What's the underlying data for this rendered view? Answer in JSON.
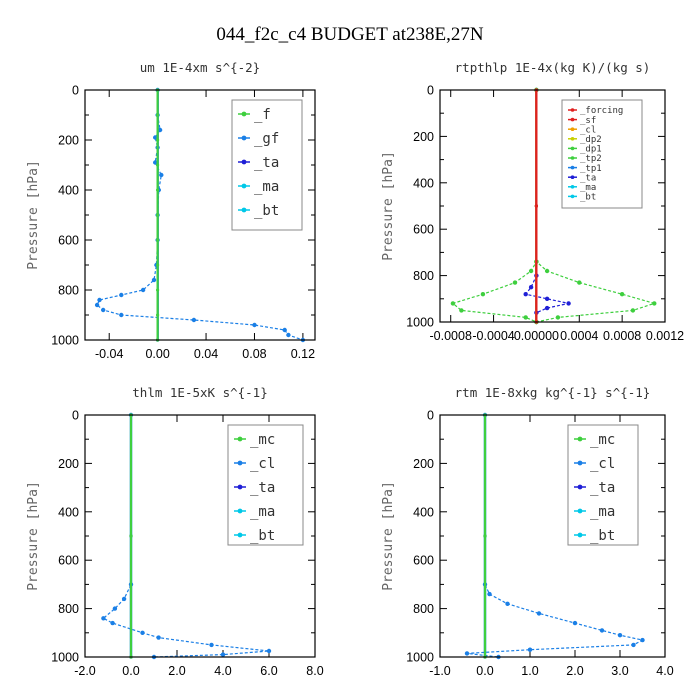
{
  "title": "044_f2c_c4  BUDGET at238E,27N",
  "colors": {
    "green": "#3ecf3e",
    "blue": "#1a7fe6",
    "navy": "#1f1fd6",
    "cyan": "#00c8e8",
    "red": "#e02020",
    "orange": "#f0a000",
    "yellow": "#c8d000"
  },
  "chart_data": [
    {
      "type": "line",
      "title": "um  1E-4xm s^{-2}",
      "ylabel": "Pressure [hPa]",
      "xlim": [
        -0.06,
        0.13
      ],
      "xticks": [
        -0.04,
        0.0,
        0.04,
        0.08,
        0.12
      ],
      "xtick_labels": [
        "-0.04",
        "0.00",
        "0.04",
        "0.08",
        "0.12"
      ],
      "ylim": [
        1000,
        0
      ],
      "yticks": [
        0,
        200,
        400,
        600,
        800,
        1000
      ],
      "legend_position": "top-right",
      "series": [
        {
          "name": "_f",
          "color": "#3ecf3e",
          "p": [
            0,
            100,
            200,
            300,
            400,
            500,
            600,
            700,
            800,
            900,
            1000
          ],
          "values": [
            0,
            0,
            0,
            0,
            0,
            0,
            0,
            0,
            0,
            0,
            0
          ]
        },
        {
          "name": "_gf",
          "color": "#1a7fe6",
          "p": [
            0,
            100,
            160,
            190,
            230,
            290,
            340,
            400,
            500,
            600,
            700,
            760,
            800,
            820,
            840,
            860,
            880,
            900,
            920,
            940,
            960,
            980,
            1000
          ],
          "values": [
            0,
            0,
            0.002,
            -0.002,
            0.0,
            -0.002,
            0.003,
            0.001,
            0.0,
            0.0,
            -0.001,
            -0.003,
            -0.012,
            -0.03,
            -0.048,
            -0.05,
            -0.045,
            -0.03,
            0.03,
            0.08,
            0.105,
            0.108,
            0.12
          ]
        },
        {
          "name": "_ta",
          "color": "#1f1fd6",
          "p": [
            0,
            500,
            1000
          ],
          "values": [
            0,
            0,
            0
          ]
        },
        {
          "name": "_ma",
          "color": "#00c8e8",
          "p": [
            0,
            500,
            1000
          ],
          "values": [
            0,
            0,
            0
          ]
        },
        {
          "name": "_bt",
          "color": "#00c8e8",
          "p": [
            0,
            500,
            1000
          ],
          "values": [
            0,
            0,
            0
          ]
        }
      ]
    },
    {
      "type": "line",
      "title": "rtpthlp  1E-4x(kg K)/(kg s)",
      "ylabel": "Pressure [hPa]",
      "xlim": [
        -0.0009,
        0.0012
      ],
      "xticks": [
        -0.0008,
        -0.0004,
        0.0,
        0.0004,
        0.0008,
        0.0012
      ],
      "xtick_labels": [
        "-0.0008",
        "-0.0004",
        "0.00000",
        "0.0004",
        "0.0008",
        "0.0012"
      ],
      "ylim": [
        1000,
        0
      ],
      "yticks": [
        0,
        200,
        400,
        600,
        800,
        1000
      ],
      "legend_position": "top-right",
      "series": [
        {
          "name": "_forcing",
          "color": "#e02020",
          "p": [
            0,
            500,
            1000
          ],
          "values": [
            0,
            0,
            0
          ]
        },
        {
          "name": "_sf",
          "color": "#e02020",
          "p": [
            0,
            500,
            1000
          ],
          "values": [
            0,
            0,
            0
          ]
        },
        {
          "name": "_cl",
          "color": "#f0a000",
          "p": [
            0,
            500,
            1000
          ],
          "values": [
            0,
            0,
            0
          ]
        },
        {
          "name": "_dp2",
          "color": "#c8d000",
          "p": [
            0,
            500,
            1000
          ],
          "values": [
            0,
            0,
            0
          ]
        },
        {
          "name": "_dp1",
          "color": "#3ecf3e",
          "p": [
            0,
            740,
            780,
            830,
            880,
            920,
            950,
            980,
            1000
          ],
          "values": [
            0,
            0.0,
            -5e-05,
            -0.0002,
            -0.0005,
            -0.00078,
            -0.0007,
            -0.0001,
            0.0
          ]
        },
        {
          "name": "_tp2",
          "color": "#3ecf3e",
          "p": [
            0,
            740,
            780,
            830,
            880,
            920,
            950,
            980,
            1000
          ],
          "values": [
            0,
            0.0,
            0.0001,
            0.0004,
            0.0008,
            0.0011,
            0.0009,
            0.0002,
            0.0
          ]
        },
        {
          "name": "_tp1",
          "color": "#1a7fe6",
          "p": [
            0,
            500,
            1000
          ],
          "values": [
            0,
            0,
            0
          ]
        },
        {
          "name": "_ta",
          "color": "#1f1fd6",
          "p": [
            0,
            800,
            850,
            880,
            900,
            920,
            940,
            960,
            1000
          ],
          "values": [
            0,
            0.0,
            -5e-05,
            -0.0001,
            0.0001,
            0.0003,
            0.0001,
            0.0,
            0.0
          ]
        },
        {
          "name": "_ma",
          "color": "#00c8e8",
          "p": [
            0,
            500,
            1000
          ],
          "values": [
            0,
            0,
            0
          ]
        },
        {
          "name": "_bt",
          "color": "#00c8e8",
          "p": [
            0,
            500,
            1000
          ],
          "values": [
            0,
            0,
            0
          ]
        }
      ]
    },
    {
      "type": "line",
      "title": "thlm  1E-5xK s^{-1}",
      "ylabel": "Pressure [hPa]",
      "xlim": [
        -2.0,
        8.0
      ],
      "xticks": [
        -2.0,
        0.0,
        2.0,
        4.0,
        6.0,
        8.0
      ],
      "xtick_labels": [
        "-2.0",
        "0.0",
        "2.0",
        "4.0",
        "6.0",
        "8.0"
      ],
      "ylim": [
        1000,
        0
      ],
      "yticks": [
        0,
        200,
        400,
        600,
        800,
        1000
      ],
      "legend_position": "top-right",
      "series": [
        {
          "name": "_mc",
          "color": "#3ecf3e",
          "p": [
            0,
            500,
            1000
          ],
          "values": [
            0,
            0,
            0
          ]
        },
        {
          "name": "_cl",
          "color": "#1a7fe6",
          "p": [
            0,
            700,
            760,
            800,
            840,
            860,
            900,
            920,
            950,
            975,
            990,
            1000
          ],
          "values": [
            0,
            0.0,
            -0.3,
            -0.7,
            -1.2,
            -0.8,
            0.5,
            1.2,
            3.5,
            6.0,
            4.0,
            1.0
          ]
        },
        {
          "name": "_ta",
          "color": "#1f1fd6",
          "p": [
            0,
            500,
            1000
          ],
          "values": [
            0,
            0,
            0
          ]
        },
        {
          "name": "_ma",
          "color": "#00c8e8",
          "p": [
            0,
            500,
            1000
          ],
          "values": [
            0,
            0,
            0
          ]
        },
        {
          "name": "_bt",
          "color": "#00c8e8",
          "p": [
            0,
            500,
            1000
          ],
          "values": [
            0,
            0,
            0
          ]
        }
      ]
    },
    {
      "type": "line",
      "title": "rtm  1E-8xkg kg^{-1} s^{-1}",
      "ylabel": "Pressure [hPa]",
      "xlim": [
        -1.0,
        4.0
      ],
      "xticks": [
        -1.0,
        0.0,
        1.0,
        2.0,
        3.0,
        4.0
      ],
      "xtick_labels": [
        "-1.0",
        "0.0",
        "1.0",
        "2.0",
        "3.0",
        "4.0"
      ],
      "ylim": [
        1000,
        0
      ],
      "yticks": [
        0,
        200,
        400,
        600,
        800,
        1000
      ],
      "legend_position": "top-right",
      "series": [
        {
          "name": "_mc",
          "color": "#3ecf3e",
          "p": [
            0,
            500,
            1000
          ],
          "values": [
            0,
            0,
            0
          ]
        },
        {
          "name": "_cl",
          "color": "#1a7fe6",
          "p": [
            0,
            700,
            740,
            780,
            820,
            860,
            890,
            910,
            930,
            950,
            970,
            985,
            1000
          ],
          "values": [
            0,
            0.0,
            0.1,
            0.5,
            1.2,
            2.0,
            2.6,
            3.0,
            3.5,
            3.3,
            1.0,
            -0.4,
            0.3
          ]
        },
        {
          "name": "_ta",
          "color": "#1f1fd6",
          "p": [
            0,
            500,
            1000
          ],
          "values": [
            0,
            0,
            0
          ]
        },
        {
          "name": "_ma",
          "color": "#00c8e8",
          "p": [
            0,
            500,
            1000
          ],
          "values": [
            0,
            0,
            0
          ]
        },
        {
          "name": "_bt",
          "color": "#00c8e8",
          "p": [
            0,
            500,
            1000
          ],
          "values": [
            0,
            0,
            0
          ]
        }
      ]
    }
  ]
}
